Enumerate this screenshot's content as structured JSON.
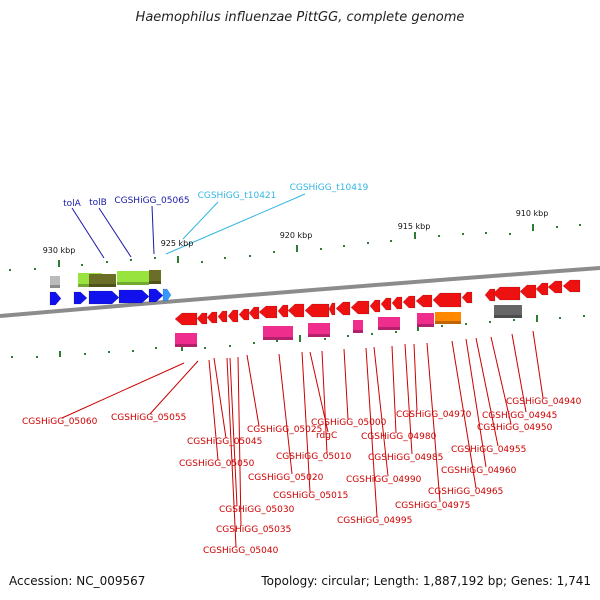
{
  "title": "Haemophilus influenzae PittGG, complete genome",
  "footer": {
    "accession": "Accession: NC_009567",
    "summary": "Topology: circular; Length: 1,887,192 bp; Genes: 1,741"
  },
  "colors": {
    "backbone": "#7a7a7a",
    "tick": "#2e7d32",
    "label_forward": "#1a1aa8",
    "label_trna": "#33b6e0",
    "label_reverse": "#cc0000",
    "gene_reverse": "#ee1111",
    "gene_forward": "#1111ee",
    "gene_trna": "#3399ff",
    "cds_lightgreen": "#99e33f",
    "cds_olive": "#6b6e26",
    "cds_pink": "#ee2d8d",
    "cds_lightpink": "#ff70b8",
    "cds_orange": "#ff8800",
    "cds_gray": "#666666",
    "cds_lightgray": "#bbbbbb"
  },
  "scale_labels": [
    {
      "text": "930 kbp"
    },
    {
      "text": "925 kbp"
    },
    {
      "text": "920 kbp"
    },
    {
      "text": "915 kbp"
    },
    {
      "text": "910 kbp"
    }
  ],
  "gene_labels_top": [
    {
      "text": "tolA",
      "kind": "forward"
    },
    {
      "text": "tolB",
      "kind": "forward"
    },
    {
      "text": "CGSHiGG_05065",
      "kind": "forward"
    },
    {
      "text": "CGSHiGG_t10421",
      "kind": "trna"
    },
    {
      "text": "CGSHiGG_t10419",
      "kind": "trna"
    }
  ],
  "gene_labels_bottom": [
    {
      "text": "CGSHiGG_05060"
    },
    {
      "text": "CGSHiGG_05055"
    },
    {
      "text": "CGSHiGG_05045"
    },
    {
      "text": "CGSHiGG_05050"
    },
    {
      "text": "CGSHiGG_05025"
    },
    {
      "text": "CGSHiGG_05030"
    },
    {
      "text": "CGSHiGG_05035"
    },
    {
      "text": "CGSHiGG_05040"
    },
    {
      "text": "CGSHiGG_05020"
    },
    {
      "text": "CGSHiGG_05015"
    },
    {
      "text": "CGSHiGG_05010"
    },
    {
      "text": "rdgC"
    },
    {
      "text": "CGSHiGG_05000"
    },
    {
      "text": "CGSHiGG_04990"
    },
    {
      "text": "CGSHiGG_04995"
    },
    {
      "text": "CGSHiGG_04980"
    },
    {
      "text": "CGSHiGG_04985"
    },
    {
      "text": "CGSHiGG_04970"
    },
    {
      "text": "CGSHiGG_04975"
    },
    {
      "text": "CGSHiGG_04965"
    },
    {
      "text": "CGSHiGG_04960"
    },
    {
      "text": "CGSHiGG_04955"
    },
    {
      "text": "CGSHiGG_04950"
    },
    {
      "text": "CGSHiGG_04945"
    },
    {
      "text": "CGSHiGG_04940"
    }
  ]
}
